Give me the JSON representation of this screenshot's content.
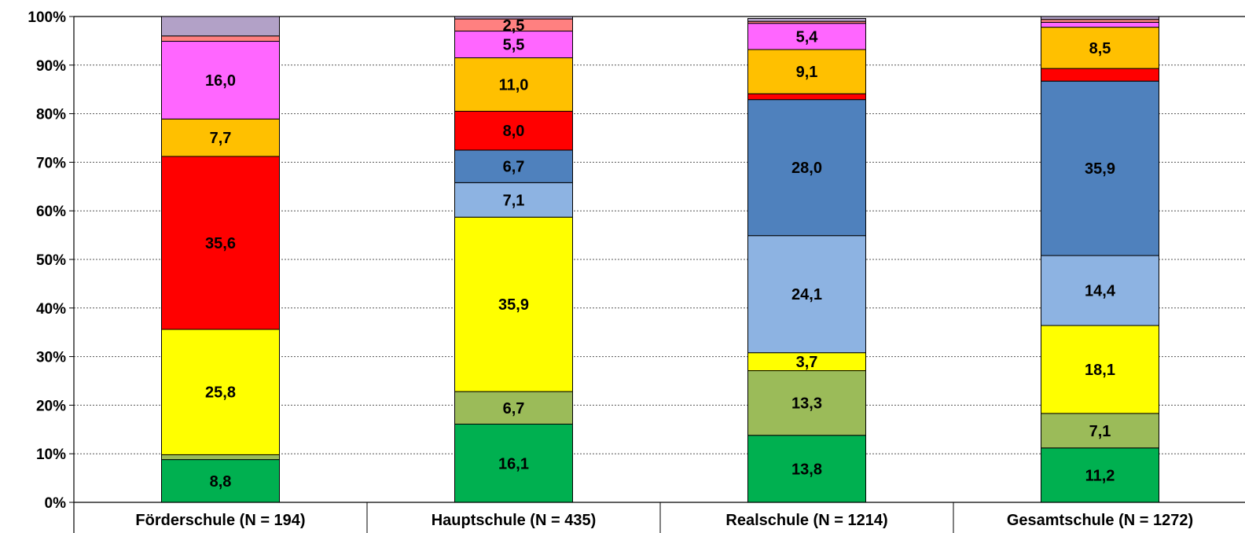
{
  "chart_data": {
    "type": "bar",
    "stacked": true,
    "percent": true,
    "title": "",
    "xlabel": "",
    "ylabel": "",
    "ylim": [
      0,
      100
    ],
    "y_ticks": [
      "0%",
      "10%",
      "20%",
      "30%",
      "40%",
      "50%",
      "60%",
      "70%",
      "80%",
      "90%",
      "100%"
    ],
    "grid": "dotted horizontal",
    "legend": "none",
    "categories": [
      "Förderschule (N = 194)",
      "Hauptschule (N = 435)",
      "Realschule (N = 1214)",
      "Gesamtschule (N = 1272)"
    ],
    "series": [
      {
        "color": "#00b050",
        "values": [
          8.8,
          16.1,
          13.8,
          11.2
        ],
        "labels": [
          "8,8",
          "16,1",
          "13,8",
          "11,2"
        ]
      },
      {
        "color": "#9bbb59",
        "values": [
          1.0,
          6.7,
          13.3,
          7.1
        ],
        "labels": [
          "",
          "6,7",
          "13,3",
          "7,1"
        ]
      },
      {
        "color": "#ffff00",
        "values": [
          25.8,
          35.9,
          3.7,
          18.1
        ],
        "labels": [
          "25,8",
          "35,9",
          "3,7",
          "18,1"
        ]
      },
      {
        "color": "#ff0000",
        "values": [
          35.6,
          0,
          0,
          0
        ],
        "labels": [
          "35,6",
          "",
          "",
          ""
        ]
      },
      {
        "color": "#8db3e2",
        "values": [
          0,
          7.1,
          24.1,
          14.4
        ],
        "labels": [
          "",
          "7,1",
          "24,1",
          "14,4"
        ]
      },
      {
        "color": "#4f81bd",
        "values": [
          0,
          6.7,
          28.0,
          35.9
        ],
        "labels": [
          "",
          "6,7",
          "28,0",
          "35,9"
        ]
      },
      {
        "color": "#ff0000",
        "values": [
          0,
          8.0,
          1.2,
          2.6
        ],
        "labels": [
          "",
          "8,0",
          "",
          ""
        ]
      },
      {
        "color": "#ffc000",
        "values": [
          7.7,
          11.0,
          9.1,
          8.5
        ],
        "labels": [
          "7,7",
          "11,0",
          "9,1",
          "8,5"
        ]
      },
      {
        "color": "#ff66ff",
        "values": [
          16.0,
          5.5,
          5.4,
          1.0
        ],
        "labels": [
          "16,0",
          "5,5",
          "5,4",
          ""
        ]
      },
      {
        "color": "#ff8080",
        "values": [
          1.1,
          2.5,
          0.4,
          0.6
        ],
        "labels": [
          "",
          "2,5",
          "",
          ""
        ]
      },
      {
        "color": "#b2a1c7",
        "values": [
          4.0,
          0.5,
          0.6,
          0.6
        ],
        "labels": [
          "",
          "",
          "",
          ""
        ]
      }
    ]
  }
}
